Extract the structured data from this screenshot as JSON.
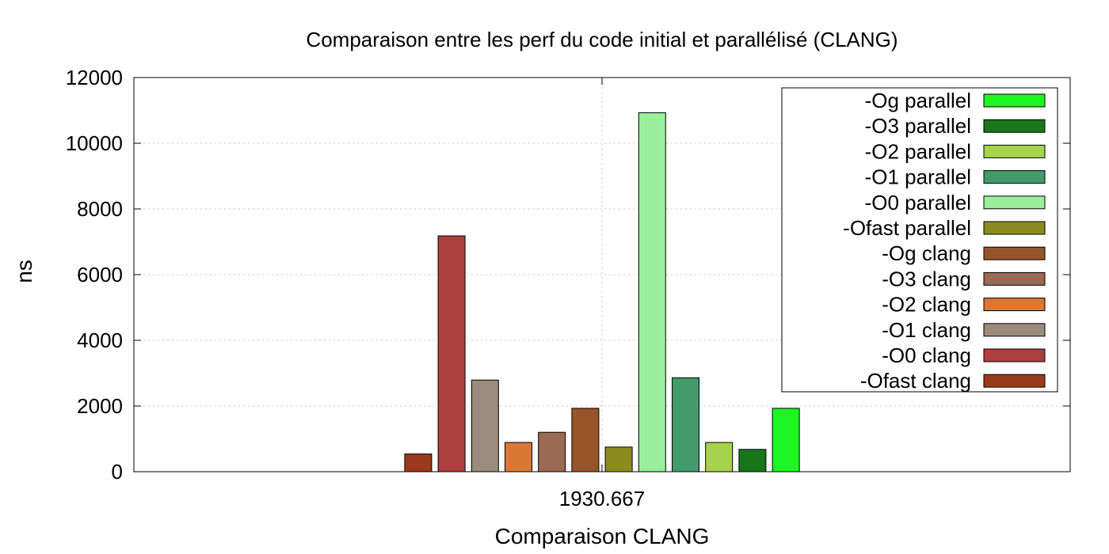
{
  "chart_data": {
    "type": "bar",
    "title": "Comparaison entre les perf du code initial et parallélisé (CLANG)",
    "xlabel": "Comparaison CLANG",
    "ylabel": "ns",
    "categories": [
      "1930.667"
    ],
    "ylim": [
      0,
      12000
    ],
    "yticks": [
      0,
      2000,
      4000,
      6000,
      8000,
      10000,
      12000
    ],
    "grid": true,
    "legend_position": "top-right",
    "series": [
      {
        "name": "-Ofast clang",
        "color": "#9a3a1a",
        "values": [
          540
        ]
      },
      {
        "name": "-O0 clang",
        "color": "#ae3f3f",
        "values": [
          7180
        ]
      },
      {
        "name": "-O1 clang",
        "color": "#9a8b7a",
        "values": [
          2790
        ]
      },
      {
        "name": "-O2 clang",
        "color": "#d97835",
        "values": [
          890
        ]
      },
      {
        "name": "-O3 clang",
        "color": "#9a6a55",
        "values": [
          1200
        ]
      },
      {
        "name": "-Og clang",
        "color": "#97552a",
        "values": [
          1930
        ]
      },
      {
        "name": "-Ofast parallel",
        "color": "#8c8c1e",
        "values": [
          750
        ]
      },
      {
        "name": "-O0 parallel",
        "color": "#9bee9b",
        "values": [
          10930
        ]
      },
      {
        "name": "-O1 parallel",
        "color": "#439a6a",
        "values": [
          2860
        ]
      },
      {
        "name": "-O2 parallel",
        "color": "#a6d34c",
        "values": [
          890
        ]
      },
      {
        "name": "-O3 parallel",
        "color": "#1a761a",
        "values": [
          680
        ]
      },
      {
        "name": "-Og parallel",
        "color": "#1ef523",
        "values": [
          1930
        ]
      }
    ]
  }
}
